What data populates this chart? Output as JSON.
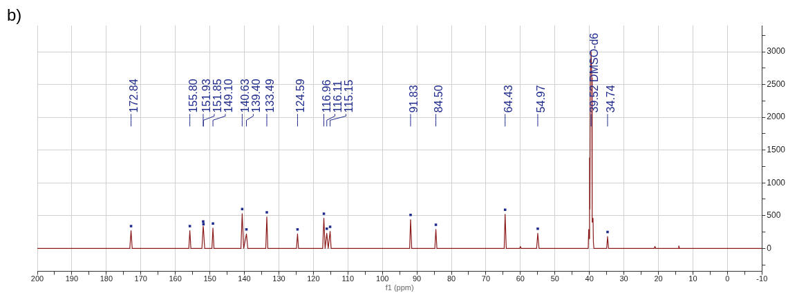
{
  "chart_data": {
    "type": "line",
    "xlabel": "f1 (ppm)",
    "xlim": [
      200,
      -10
    ],
    "xticks": [
      200,
      {
        "value": 195,
        "label": null
      },
      190,
      {
        "value": 185,
        "label": null
      },
      180,
      {
        "value": 175,
        "label": null
      },
      170,
      {
        "value": 165,
        "label": null
      },
      160,
      {
        "value": 155,
        "label": null
      },
      150,
      {
        "value": 145,
        "label": null
      },
      140,
      {
        "value": 135,
        "label": null
      },
      130,
      {
        "value": 125,
        "label": null
      },
      120,
      {
        "value": 115,
        "label": null
      },
      110,
      {
        "value": 105,
        "label": null
      },
      100,
      {
        "value": 95,
        "label": null
      },
      90,
      {
        "value": 85,
        "label": null
      },
      80,
      {
        "value": 75,
        "label": null
      },
      70,
      {
        "value": 65,
        "label": null
      },
      60,
      {
        "value": 55,
        "label": null
      },
      50,
      {
        "value": 45,
        "label": null
      },
      40,
      {
        "value": 35,
        "label": null
      },
      30,
      {
        "value": 25,
        "label": null
      },
      20,
      {
        "value": 15,
        "label": null
      },
      10,
      {
        "value": 5,
        "label": null
      },
      0,
      {
        "value": -5,
        "label": null
      },
      -10
    ],
    "ylim": [
      -350,
      3400
    ],
    "yticks": [
      {
        "value": -250,
        "label": null
      },
      0,
      {
        "value": 250,
        "label": null
      },
      500,
      {
        "value": 750,
        "label": null
      },
      1000,
      {
        "value": 1250,
        "label": null
      },
      1500,
      {
        "value": 1750,
        "label": null
      },
      2000,
      {
        "value": 2250,
        "label": null
      },
      2500,
      {
        "value": 2750,
        "label": null
      },
      3000,
      {
        "value": 3250,
        "label": null
      }
    ],
    "grid": true,
    "legend": false,
    "line_style": "solid",
    "series": [
      {
        "color": "#8b1a1a",
        "marker": "none",
        "x": [
          200,
          173.2,
          172.84,
          172.5,
          156.1,
          155.8,
          155.5,
          152.3,
          151.93,
          151.85,
          151.5,
          149.4,
          149.1,
          148.8,
          141,
          140.63,
          140.2,
          139.4,
          139,
          133.8,
          133.49,
          133.2,
          124.9,
          124.59,
          124.3,
          117.3,
          116.96,
          116.6,
          116.11,
          115.7,
          115.15,
          114.85,
          92.1,
          91.83,
          91.5,
          84.8,
          84.5,
          84.2,
          64.7,
          64.43,
          64.1,
          60.2,
          60,
          59.8,
          55.3,
          54.97,
          54.6,
          40.35,
          40.2,
          40.1,
          39.95,
          39.85,
          39.72,
          39.52,
          39.31,
          39.2,
          39.1,
          38.95,
          38.85,
          38.7,
          35,
          34.74,
          34.45,
          21.2,
          21,
          20.8,
          14.3,
          14.1,
          13.9,
          -10
        ],
        "values": [
          0,
          0,
          270,
          0,
          0,
          270,
          0,
          0,
          340,
          300,
          0,
          0,
          310,
          0,
          0,
          530,
          0,
          220,
          0,
          0,
          480,
          0,
          0,
          220,
          0,
          0,
          460,
          0,
          230,
          0,
          260,
          0,
          0,
          440,
          0,
          0,
          290,
          0,
          0,
          520,
          0,
          0,
          30,
          0,
          0,
          230,
          0,
          0,
          290,
          150,
          1380,
          600,
          2600,
          3000,
          2600,
          400,
          460,
          450,
          100,
          0,
          0,
          180,
          0,
          0,
          30,
          0,
          0,
          40,
          0,
          0
        ]
      },
      {
        "type": "scatter",
        "marker": "square",
        "color": "#1f2b8c",
        "x": [
          172.84,
          155.8,
          151.93,
          151.85,
          149.1,
          140.63,
          139.4,
          133.49,
          124.59,
          116.96,
          116.11,
          115.15,
          91.83,
          84.5,
          64.43,
          54.97,
          34.74
        ],
        "values": [
          340,
          340,
          410,
          370,
          380,
          600,
          290,
          550,
          290,
          530,
          300,
          330,
          510,
          360,
          590,
          300,
          250
        ]
      }
    ],
    "annotations": [
      "b)",
      {
        "text": "172.84",
        "x": 172.84
      },
      {
        "text": "155.80",
        "x": 155.8
      },
      {
        "text": "151.93",
        "x": 151.93
      },
      {
        "text": "151.85",
        "x": 151.85
      },
      {
        "text": "149.10",
        "x": 149.1
      },
      {
        "text": "140.63",
        "x": 140.63
      },
      {
        "text": "139.40",
        "x": 139.4
      },
      {
        "text": "133.49",
        "x": 133.49
      },
      {
        "text": "124.59",
        "x": 124.59
      },
      {
        "text": "116.96",
        "x": 116.96
      },
      {
        "text": "116.11",
        "x": 116.11
      },
      {
        "text": "115.15",
        "x": 115.15
      },
      {
        "text": "91.83",
        "x": 91.83
      },
      {
        "text": "84.50",
        "x": 84.5
      },
      {
        "text": "64.43",
        "x": 64.43
      },
      {
        "text": "54.97",
        "x": 54.97
      },
      {
        "text": "39.52 DMSO-d6",
        "x": 39.52
      },
      {
        "text": "34.74",
        "x": 34.74
      }
    ]
  }
}
